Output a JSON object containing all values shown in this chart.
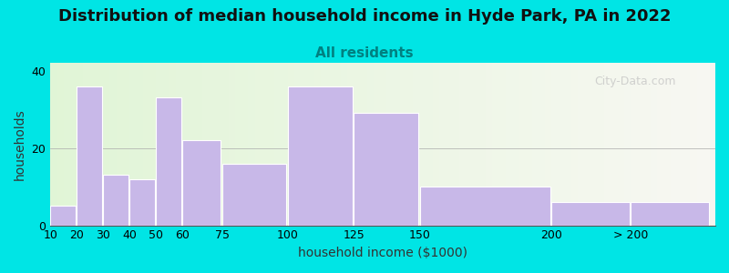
{
  "title": "Distribution of median household income in Hyde Park, PA in 2022",
  "subtitle": "All residents",
  "xlabel": "household income ($1000)",
  "ylabel": "households",
  "bar_labels": [
    "10",
    "20",
    "30",
    "40",
    "50",
    "60",
    "75",
    "100",
    "125",
    "150",
    "200",
    "> 200"
  ],
  "bar_heights": [
    5,
    36,
    13,
    12,
    33,
    22,
    16,
    36,
    29,
    10,
    6,
    6
  ],
  "bar_color": "#c8b8e8",
  "bar_edgecolor": "#ffffff",
  "ylim": [
    0,
    42
  ],
  "yticks": [
    0,
    20,
    40
  ],
  "background_outer": "#00e5e5",
  "plot_bg_left": "#e8f5e0",
  "plot_bg_right": "#f5f5f0",
  "title_fontsize": 13,
  "subtitle_fontsize": 11,
  "subtitle_color": "#008080",
  "axis_label_fontsize": 10,
  "tick_fontsize": 9,
  "watermark_text": "City-Data.com",
  "watermark_color": "#c0c0c0"
}
